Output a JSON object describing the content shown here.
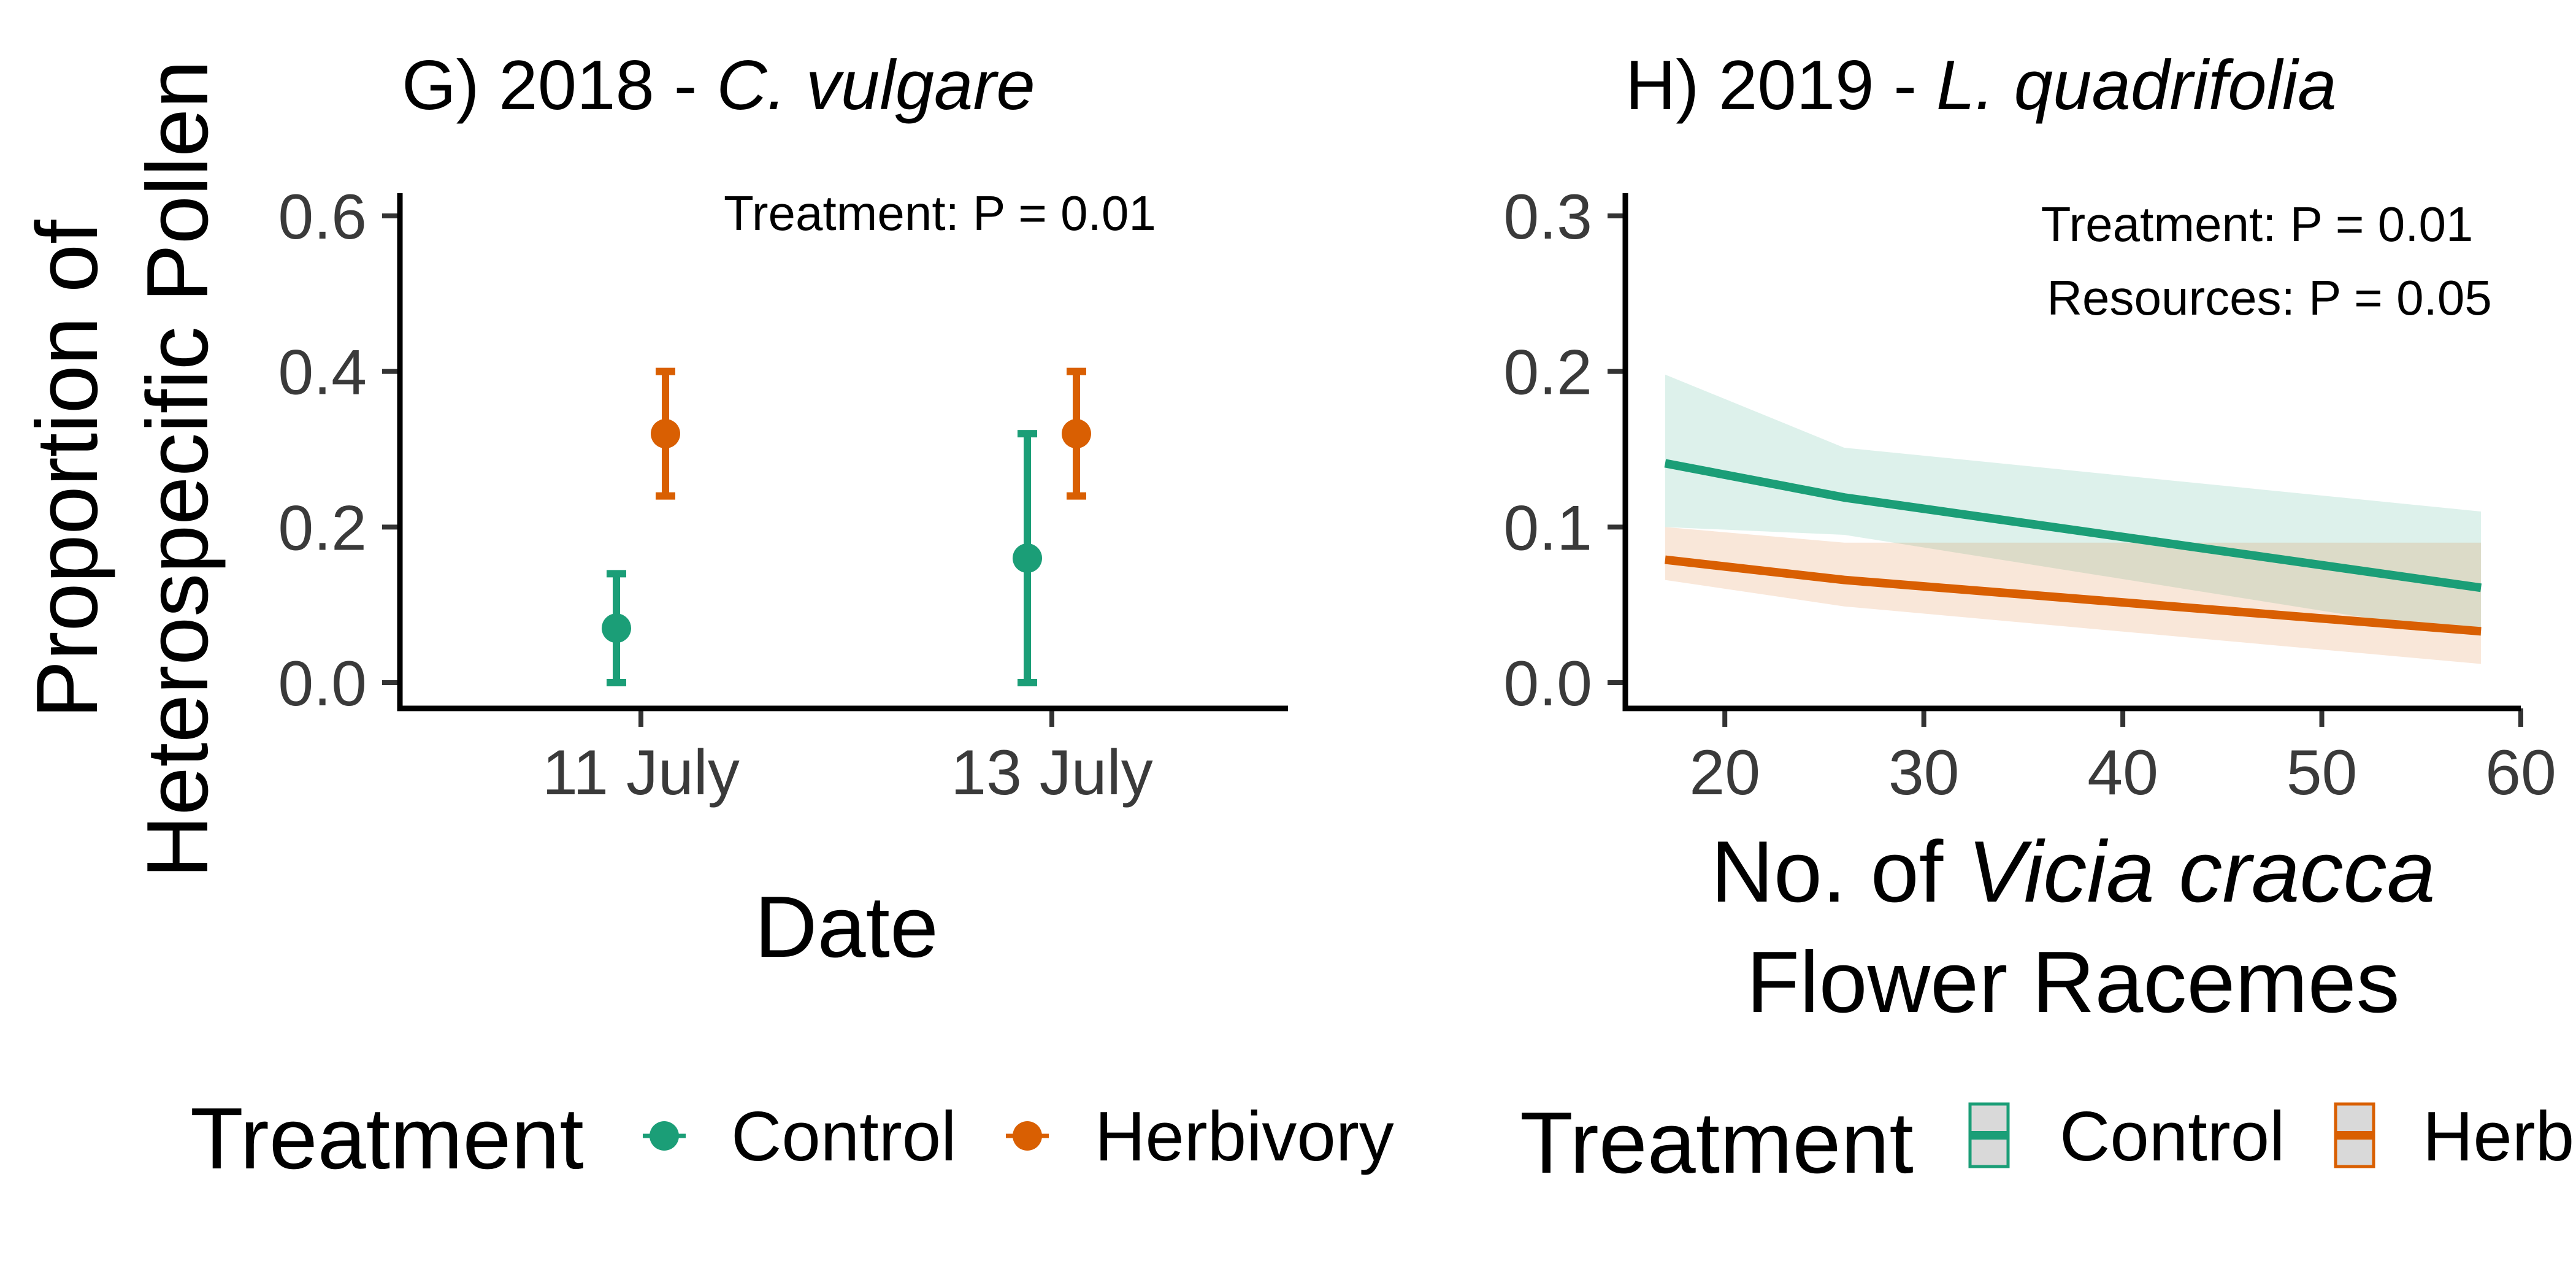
{
  "colors": {
    "control": "#1b9e77",
    "herbivory": "#d95f02"
  },
  "chart_data": [
    {
      "type": "scatter",
      "title": {
        "prefix": "G) 2018 - ",
        "species": "C. vulgare"
      },
      "xlabel": "Date",
      "ylabel": [
        "Proportion of",
        "Heterospecific Pollen"
      ],
      "categories": [
        "11 July",
        "13 July"
      ],
      "ylim": [
        0,
        0.6
      ],
      "yticks": [
        0.0,
        0.2,
        0.4,
        0.6
      ],
      "ytick_labels": [
        "0.0",
        "0.2",
        "0.4",
        "0.6"
      ],
      "annotations": [
        "Treatment: P = 0.01"
      ],
      "series": [
        {
          "name": "Control",
          "color": "#1b9e77",
          "values": [
            0.07,
            0.16
          ],
          "lower": [
            0.0,
            0.0
          ],
          "upper": [
            0.14,
            0.32
          ]
        },
        {
          "name": "Herbivory",
          "color": "#d95f02",
          "values": [
            0.32,
            0.32
          ],
          "lower": [
            0.24,
            0.24
          ],
          "upper": [
            0.4,
            0.4
          ]
        }
      ],
      "legend": {
        "title": "Treatment",
        "position": "bottom",
        "labels": [
          "Control",
          "Herbivory"
        ]
      },
      "grid": false
    },
    {
      "type": "line",
      "title": {
        "prefix": "H) 2019 - ",
        "species": "L. quadrifolia"
      },
      "xlabel": {
        "prefix": "No. of ",
        "species": "Vicia cracca",
        "line2": "Flower Racemes"
      },
      "ylabel": "",
      "xlim": [
        15,
        60
      ],
      "xticks": [
        20,
        30,
        40,
        50,
        60
      ],
      "xtick_labels": [
        "20",
        "30",
        "40",
        "50",
        "60"
      ],
      "ylim": [
        0,
        0.3
      ],
      "yticks": [
        0.0,
        0.1,
        0.2,
        0.3
      ],
      "ytick_labels": [
        "0.0",
        "0.1",
        "0.2",
        "0.3"
      ],
      "annotations": [
        "Treatment: P = 0.01",
        "Resources: P = 0.05"
      ],
      "series": [
        {
          "name": "Control",
          "color": "#1b9e77",
          "x": [
            17,
            26,
            58
          ],
          "y": [
            0.141,
            0.119,
            0.061
          ],
          "ribbon_x": [
            17,
            26,
            58
          ],
          "ribbon_lower": [
            0.1,
            0.095,
            0.03
          ],
          "ribbon_upper": [
            0.198,
            0.151,
            0.11
          ]
        },
        {
          "name": "Herbivory",
          "color": "#d95f02",
          "x": [
            17,
            26,
            58
          ],
          "y": [
            0.079,
            0.066,
            0.033
          ],
          "ribbon_x": [
            17,
            26,
            58
          ],
          "ribbon_lower": [
            0.066,
            0.049,
            0.012
          ],
          "ribbon_upper": [
            0.1,
            0.09,
            0.09
          ]
        }
      ],
      "legend": {
        "title": "Treatment",
        "position": "bottom",
        "labels": [
          "Control",
          "Herb"
        ]
      },
      "grid": false
    }
  ]
}
